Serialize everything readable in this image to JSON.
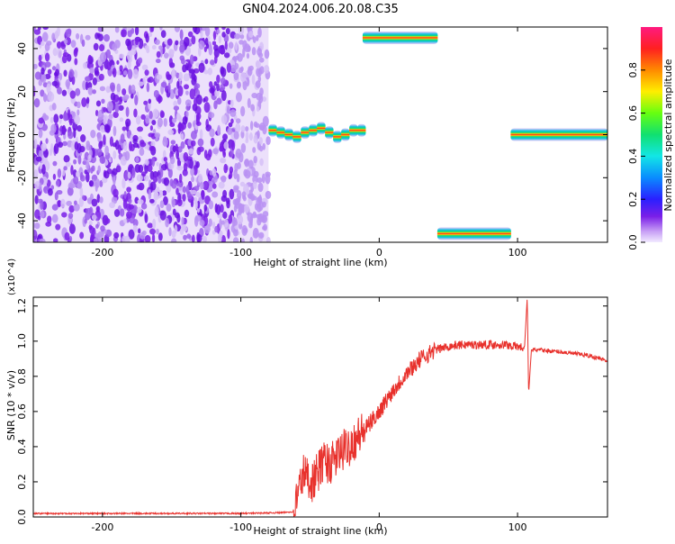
{
  "title": "GN04.2024.006.20.08.C35",
  "chart_data": [
    {
      "type": "heatmap",
      "xlabel": "Height of straight line (km)",
      "ylabel": "Frequency (Hz)",
      "xlim": [
        -250,
        165
      ],
      "ylim": [
        -50,
        50
      ],
      "xticks": [
        -200,
        -100,
        0,
        100
      ],
      "yticks": [
        -40,
        -20,
        0,
        20,
        40
      ],
      "colorbar": {
        "label": "Normalized spectral amplitude",
        "range": [
          0,
          1
        ],
        "ticks": [
          "0.0",
          "0.2",
          "0.4",
          "0.6",
          "0.8"
        ]
      },
      "noise_region": {
        "x": [
          -250,
          -80
        ],
        "freq": [
          -50,
          50
        ]
      },
      "segments": [
        {
          "x0": -80,
          "x1": -10,
          "freq": [
            2,
            1,
            0,
            -1,
            1,
            2,
            3,
            1,
            -1,
            0,
            2,
            2
          ]
        },
        {
          "x0": -12,
          "x1": 42,
          "freq": [
            45
          ]
        },
        {
          "x0": 42,
          "x1": 95,
          "freq": [
            -46
          ]
        },
        {
          "x0": 95,
          "x1": 165,
          "freq": [
            0
          ]
        }
      ]
    },
    {
      "type": "line",
      "xlabel": "Height of straight line (km)",
      "ylabel": "SNR (10 * v/v)",
      "y_multiplier": "(x10^4)",
      "xlim": [
        -250,
        165
      ],
      "ylim": [
        0,
        1.25
      ],
      "xticks": [
        -200,
        -100,
        0,
        100
      ],
      "yticks": [
        "0.0",
        "0.2",
        "0.4",
        "0.6",
        "0.8",
        "1.0",
        "1.2"
      ],
      "color": "#e8312c",
      "series": [
        {
          "x": [
            -250,
            -150,
            -100,
            -70,
            -62,
            -55,
            -48,
            -40,
            -35,
            -30,
            -20,
            -10,
            0,
            10,
            20,
            30,
            40,
            50,
            60,
            70,
            80,
            90,
            100,
            105,
            107,
            108,
            110,
            115,
            130,
            150,
            165
          ],
          "values": [
            0.02,
            0.02,
            0.02,
            0.025,
            0.03,
            0.25,
            0.2,
            0.32,
            0.3,
            0.35,
            0.42,
            0.5,
            0.6,
            0.72,
            0.82,
            0.9,
            0.95,
            0.97,
            0.98,
            0.98,
            0.98,
            0.98,
            0.97,
            0.96,
            1.25,
            0.7,
            0.95,
            0.95,
            0.94,
            0.92,
            0.89
          ]
        }
      ]
    }
  ]
}
